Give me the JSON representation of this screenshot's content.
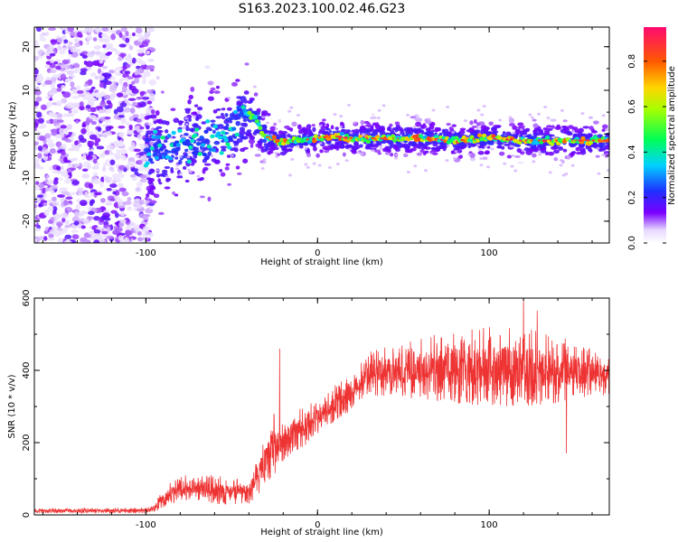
{
  "title": "S163.2023.100.02.46.G23",
  "chart_data": [
    {
      "type": "heatmap",
      "xlabel": "Height of straight line (km)",
      "ylabel": "Frequency (Hz)",
      "xlim": [
        -165,
        170
      ],
      "ylim": [
        -25,
        24.5
      ],
      "xticks": [
        -100,
        0,
        100
      ],
      "yticks": [
        -20,
        -10,
        0,
        10,
        20
      ],
      "colorbar": {
        "label": "Normalized spectral amplitude",
        "ticks": [
          0.0,
          0.2,
          0.4,
          0.6,
          0.8
        ],
        "range": [
          0,
          0.95
        ]
      },
      "ridge": {
        "x": [
          -100,
          -90,
          -80,
          -70,
          -60,
          -50,
          -45,
          -40,
          -37,
          -34,
          -32,
          -28,
          -20,
          -10,
          0,
          10,
          20,
          40,
          60,
          80,
          100,
          120,
          140,
          170
        ],
        "y": [
          -4,
          -4,
          -3,
          -2,
          -1,
          1,
          3,
          4.5,
          4,
          2,
          0,
          -1,
          -2,
          -1.5,
          -1,
          -0.5,
          -1,
          -1,
          -1,
          -1.5,
          -1,
          -1.5,
          -1.5,
          -1.5
        ]
      },
      "noise_region": {
        "x_range": [
          -165,
          -100
        ],
        "y_range": [
          -25,
          24.5
        ]
      }
    },
    {
      "type": "line",
      "xlabel": "Height of straight line (km)",
      "ylabel": "SNR (10 * v/v)",
      "xlim": [
        -165,
        170
      ],
      "ylim": [
        0,
        600
      ],
      "xticks": [
        -100,
        0,
        100
      ],
      "yticks": [
        0,
        200,
        400,
        600
      ],
      "series": [
        {
          "color": "#ee3333",
          "envelope": {
            "x": [
              -165,
              -100,
              -95,
              -90,
              -80,
              -70,
              -60,
              -50,
              -40,
              -34,
              -30,
              -25,
              -20,
              -15,
              -10,
              0,
              10,
              20,
              25,
              30,
              40,
              60,
              80,
              100,
              120,
              140,
              160,
              170
            ],
            "lo": [
              5,
              5,
              8,
              20,
              40,
              40,
              30,
              30,
              30,
              60,
              90,
              110,
              150,
              170,
              180,
              220,
              260,
              290,
              320,
              330,
              330,
              320,
              310,
              300,
              300,
              310,
              330,
              330
            ],
            "hi": [
              18,
              20,
              30,
              70,
              120,
              110,
              110,
              100,
              100,
              170,
              220,
              290,
              260,
              290,
              300,
              320,
              360,
              390,
              420,
              450,
              470,
              490,
              510,
              520,
              520,
              500,
              460,
              440
            ]
          },
          "spikes": [
            {
              "x": -22,
              "y": 460
            },
            {
              "x": 120,
              "y": 600
            },
            {
              "x": 128,
              "y": 565
            },
            {
              "x": 145,
              "y": 170
            }
          ]
        }
      ]
    }
  ]
}
